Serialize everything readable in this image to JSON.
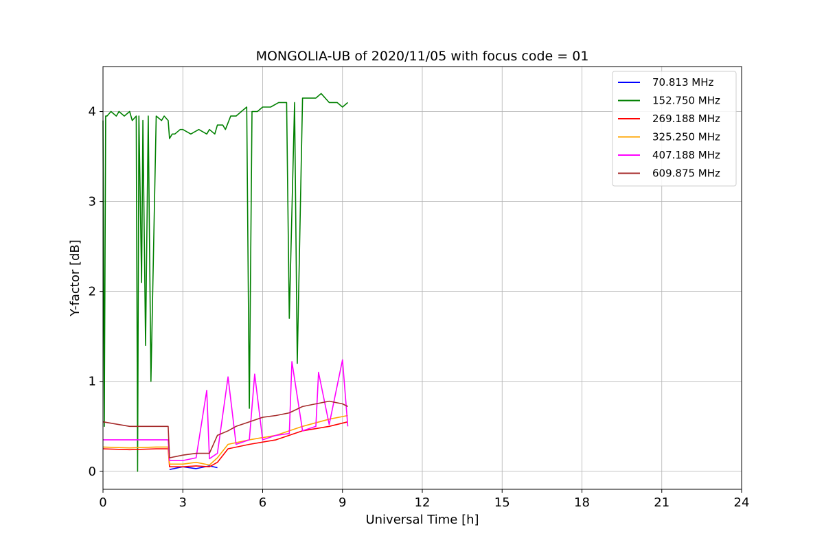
{
  "chart_data": {
    "type": "line",
    "title": "MONGOLIA-UB of 2020/11/05 with focus code = 01",
    "xlabel": "Universal Time [h]",
    "ylabel": "Y-factor [dB]",
    "xlim": [
      0,
      24
    ],
    "ylim": [
      -0.2,
      4.5
    ],
    "xticks": [
      0,
      3,
      6,
      9,
      12,
      15,
      18,
      21,
      24
    ],
    "xtick_labels": [
      "0",
      "3",
      "6",
      "9",
      "12",
      "15",
      "18",
      "21",
      "24"
    ],
    "yticks": [
      0,
      1,
      2,
      3,
      4
    ],
    "ytick_labels": [
      "0",
      "1",
      "2",
      "3",
      "4"
    ],
    "grid": true,
    "legend_position": "top-right",
    "series": [
      {
        "name": " 70.813 MHz",
        "color": "#0000ff",
        "x": [
          2.5,
          3.0,
          3.5,
          4.0,
          4.3
        ],
        "y": [
          0.02,
          0.05,
          0.03,
          0.06,
          0.04
        ]
      },
      {
        "name": "152.750 MHz",
        "color": "#008000",
        "x": [
          0,
          0.05,
          0.1,
          0.15,
          0.3,
          0.5,
          0.6,
          0.8,
          1.0,
          1.1,
          1.25,
          1.3,
          1.35,
          1.45,
          1.5,
          1.6,
          1.7,
          1.8,
          2.0,
          2.2,
          2.3,
          2.45,
          2.5,
          2.6,
          2.7,
          2.9,
          3.0,
          3.3,
          3.6,
          3.9,
          4.0,
          4.2,
          4.3,
          4.5,
          4.6,
          4.8,
          5.0,
          5.2,
          5.4,
          5.5,
          5.6,
          5.8,
          6.0,
          6.3,
          6.6,
          6.9,
          7.0,
          7.2,
          7.3,
          7.5,
          7.8,
          8.0,
          8.2,
          8.5,
          8.8,
          9.0,
          9.2
        ],
        "y": [
          3.9,
          0.5,
          3.95,
          3.95,
          4.0,
          3.95,
          4.0,
          3.95,
          4.0,
          3.9,
          3.95,
          0.0,
          3.95,
          2.1,
          3.9,
          1.4,
          3.95,
          1.0,
          3.95,
          3.9,
          3.95,
          3.9,
          3.7,
          3.75,
          3.75,
          3.8,
          3.8,
          3.75,
          3.8,
          3.75,
          3.8,
          3.75,
          3.85,
          3.85,
          3.8,
          3.95,
          3.95,
          4.0,
          4.05,
          0.7,
          4.0,
          4.0,
          4.05,
          4.05,
          4.1,
          4.1,
          1.7,
          4.1,
          1.2,
          4.15,
          4.15,
          4.15,
          4.2,
          4.1,
          4.1,
          4.05,
          4.1
        ]
      },
      {
        "name": "269.188 MHz",
        "color": "#ff0000",
        "x": [
          0,
          1.0,
          2.0,
          2.45,
          2.5,
          3.0,
          3.5,
          4.0,
          4.3,
          4.7,
          5.5,
          6.5,
          7.5,
          8.5,
          9.2
        ],
        "y": [
          0.25,
          0.24,
          0.25,
          0.25,
          0.05,
          0.05,
          0.06,
          0.05,
          0.1,
          0.25,
          0.3,
          0.35,
          0.45,
          0.5,
          0.55
        ]
      },
      {
        "name": "325.250 MHz",
        "color": "#ffa500",
        "x": [
          0,
          1.0,
          2.0,
          2.45,
          2.5,
          3.0,
          3.5,
          4.0,
          4.3,
          4.7,
          5.5,
          6.5,
          7.5,
          8.5,
          9.2
        ],
        "y": [
          0.27,
          0.26,
          0.27,
          0.27,
          0.08,
          0.08,
          0.1,
          0.07,
          0.15,
          0.3,
          0.35,
          0.4,
          0.5,
          0.58,
          0.62
        ]
      },
      {
        "name": "407.188 MHz",
        "color": "#ff00ff",
        "x": [
          0,
          1.0,
          2.0,
          2.45,
          2.5,
          3.0,
          3.5,
          3.9,
          4.0,
          4.3,
          4.7,
          5.0,
          5.5,
          5.7,
          6.0,
          6.5,
          7.0,
          7.1,
          7.5,
          8.0,
          8.1,
          8.5,
          9.0,
          9.2
        ],
        "y": [
          0.35,
          0.35,
          0.35,
          0.35,
          0.12,
          0.12,
          0.15,
          0.9,
          0.14,
          0.2,
          1.05,
          0.3,
          0.35,
          1.08,
          0.35,
          0.4,
          0.42,
          1.22,
          0.45,
          0.5,
          1.1,
          0.52,
          1.24,
          0.5
        ]
      },
      {
        "name": "609.875 MHz",
        "color": "#a52a2a",
        "x": [
          0,
          1.0,
          2.0,
          2.45,
          2.5,
          3.0,
          3.5,
          4.0,
          4.3,
          4.7,
          5.0,
          5.5,
          6.0,
          6.5,
          7.0,
          7.5,
          8.0,
          8.5,
          9.0,
          9.2
        ],
        "y": [
          0.55,
          0.5,
          0.5,
          0.5,
          0.15,
          0.18,
          0.2,
          0.2,
          0.4,
          0.45,
          0.5,
          0.55,
          0.6,
          0.62,
          0.65,
          0.72,
          0.75,
          0.78,
          0.75,
          0.72
        ]
      }
    ]
  }
}
